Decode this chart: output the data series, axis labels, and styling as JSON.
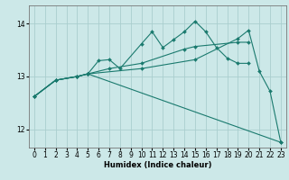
{
  "xlabel": "Humidex (Indice chaleur)",
  "bg_color": "#cce8e8",
  "line_color": "#1a7a6e",
  "grid_color": "#aacece",
  "xlim": [
    -0.5,
    23.5
  ],
  "ylim": [
    11.65,
    14.35
  ],
  "yticks": [
    12,
    13,
    14
  ],
  "xticks": [
    0,
    1,
    2,
    3,
    4,
    5,
    6,
    7,
    8,
    9,
    10,
    11,
    12,
    13,
    14,
    15,
    16,
    17,
    18,
    19,
    20,
    21,
    22,
    23
  ],
  "lines": [
    {
      "x": [
        0,
        2,
        4,
        5,
        6,
        7,
        8,
        10,
        11,
        12,
        13,
        14,
        15,
        16,
        17,
        18,
        19,
        20
      ],
      "y": [
        12.62,
        12.93,
        13.0,
        13.05,
        13.3,
        13.32,
        13.15,
        13.62,
        13.85,
        13.55,
        13.7,
        13.85,
        14.05,
        13.85,
        13.55,
        13.35,
        13.25,
        13.25
      ]
    },
    {
      "x": [
        0,
        2,
        4,
        5,
        10,
        15,
        19,
        20,
        21,
        22,
        23
      ],
      "y": [
        12.62,
        12.93,
        13.0,
        13.05,
        13.15,
        13.32,
        13.72,
        13.88,
        13.1,
        12.72,
        11.75
      ]
    },
    {
      "x": [
        0,
        2,
        4,
        5,
        7,
        10,
        14,
        15,
        19,
        20
      ],
      "y": [
        12.62,
        12.93,
        13.0,
        13.05,
        13.15,
        13.25,
        13.52,
        13.57,
        13.65,
        13.65
      ]
    },
    {
      "x": [
        0,
        2,
        4,
        5,
        23
      ],
      "y": [
        12.62,
        12.93,
        13.0,
        13.05,
        11.75
      ]
    }
  ]
}
